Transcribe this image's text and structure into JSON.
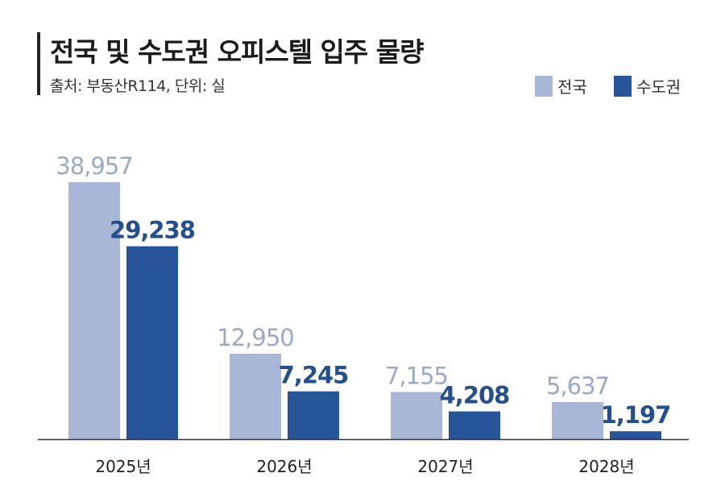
{
  "title": "전국 및 수도권 오피스텔 입주 물량",
  "subtitle": "출처: 부동산R114, 단위: 실",
  "colors": {
    "national": "#a8b7d6",
    "capital": "#27559a",
    "national_label": "#98a9cc",
    "capital_label": "#234f8f"
  },
  "chart_data": {
    "type": "bar",
    "categories": [
      "2025년",
      "2026년",
      "2027년",
      "2028년"
    ],
    "series": [
      {
        "name": "전국",
        "values": [
          38957,
          12950,
          7155,
          5637
        ],
        "labels": [
          "38,957",
          "12,950",
          "7,155",
          "5,637"
        ]
      },
      {
        "name": "수도권",
        "values": [
          29238,
          7245,
          4208,
          1197
        ],
        "labels": [
          "29,238",
          "7,245",
          "4,208",
          "1,197"
        ]
      }
    ],
    "ylim": [
      0,
      39000
    ],
    "grid": false,
    "legend": "top-right"
  }
}
